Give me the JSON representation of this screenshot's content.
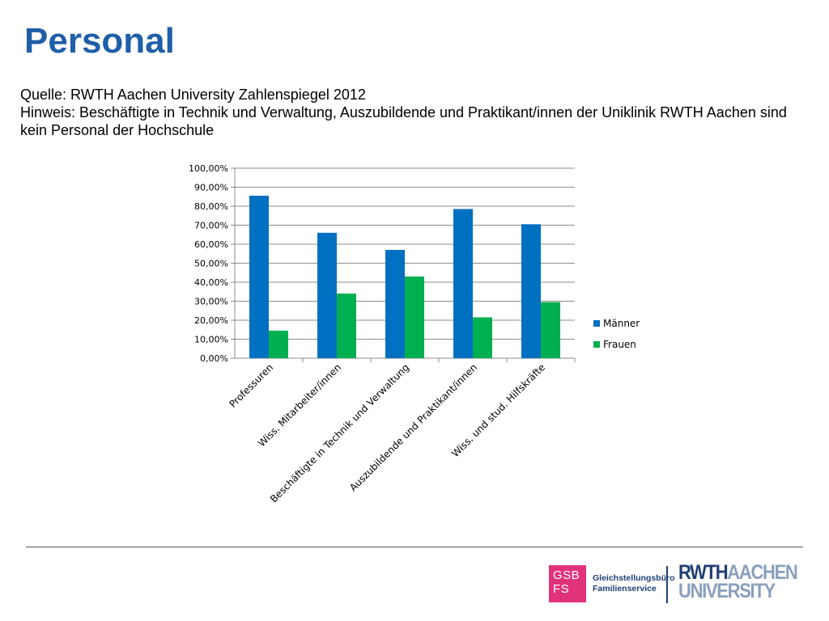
{
  "slide": {
    "title": "Personal",
    "source": "Quelle: RWTH Aachen University Zahlenspiegel 2012",
    "note": "Hinweis: Beschäftigte in Technik und Verwaltung, Auszubildende und Praktikant/innen der Uniklinik RWTH Aachen sind kein Personal der Hochschule"
  },
  "chart_data": {
    "type": "bar",
    "title": "",
    "xlabel": "",
    "ylabel": "",
    "categories": [
      "Professuren",
      "Wiss. Mitarbeiter/innen",
      "Beschäftigte in Technik und Verwaltung",
      "Auszubildende und Praktikant/innen",
      "Wiss. und stud. Hilfskräfte"
    ],
    "series": [
      {
        "name": "Männer",
        "values": [
          85.5,
          66.0,
          57.0,
          78.5,
          70.5
        ],
        "color": "#0070c0"
      },
      {
        "name": "Frauen",
        "values": [
          14.5,
          34.0,
          43.0,
          21.5,
          29.5
        ],
        "color": "#00b050"
      }
    ],
    "ylim": [
      0,
      100
    ],
    "yticks": [
      0,
      10,
      20,
      30,
      40,
      50,
      60,
      70,
      80,
      90,
      100
    ],
    "ytick_labels": [
      "0,00%",
      "10,00%",
      "20,00%",
      "30,00%",
      "40,00%",
      "50,00%",
      "60,00%",
      "70,00%",
      "80,00%",
      "90,00%",
      "100,00%"
    ],
    "grid": true,
    "legend_position": "right"
  },
  "footer": {
    "gsb_box": [
      "GSB",
      "FS"
    ],
    "gsb_text": [
      "Gleichstellungsbüro",
      "Familienservice"
    ],
    "rwth_logo": [
      "RWTH",
      "AACHEN",
      "UNIVERSITY"
    ]
  }
}
